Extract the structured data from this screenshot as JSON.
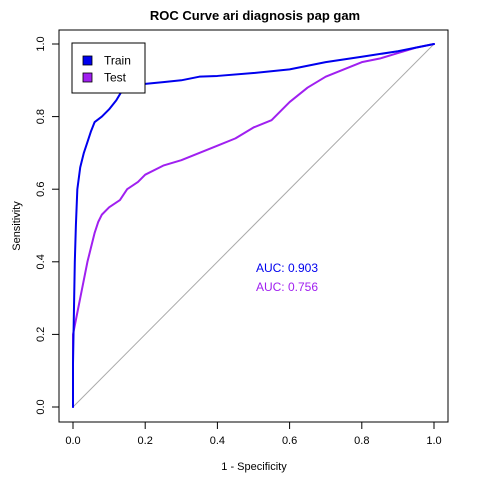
{
  "chart_data": {
    "type": "line",
    "title": "ROC Curve ari diagnosis pap gam",
    "xlabel": "1 - Specificity",
    "ylabel": "Sensitivity",
    "xlim": [
      0,
      1
    ],
    "ylim": [
      0,
      1
    ],
    "xticks": [
      "0.0",
      "0.2",
      "0.4",
      "0.6",
      "0.8",
      "1.0"
    ],
    "yticks": [
      "0.0",
      "0.2",
      "0.4",
      "0.6",
      "0.8",
      "1.0"
    ],
    "grid": false,
    "legend_position": "top-left",
    "diagonal_reference": true,
    "colors": {
      "train": "#0000ee",
      "test": "#a020f0",
      "diagonal": "#aaaaaa",
      "axis": "#000000"
    },
    "series": [
      {
        "name": "Train",
        "auc_label": "AUC: 0.903",
        "points": [
          [
            0.0,
            0.0
          ],
          [
            0.0,
            0.12
          ],
          [
            0.005,
            0.4
          ],
          [
            0.008,
            0.5
          ],
          [
            0.012,
            0.6
          ],
          [
            0.02,
            0.66
          ],
          [
            0.03,
            0.7
          ],
          [
            0.04,
            0.73
          ],
          [
            0.05,
            0.76
          ],
          [
            0.06,
            0.785
          ],
          [
            0.08,
            0.8
          ],
          [
            0.1,
            0.82
          ],
          [
            0.12,
            0.845
          ],
          [
            0.135,
            0.87
          ],
          [
            0.15,
            0.88
          ],
          [
            0.2,
            0.89
          ],
          [
            0.25,
            0.895
          ],
          [
            0.3,
            0.9
          ],
          [
            0.35,
            0.91
          ],
          [
            0.4,
            0.912
          ],
          [
            0.5,
            0.92
          ],
          [
            0.6,
            0.93
          ],
          [
            0.7,
            0.95
          ],
          [
            0.8,
            0.965
          ],
          [
            0.9,
            0.98
          ],
          [
            0.95,
            0.99
          ],
          [
            1.0,
            1.0
          ]
        ]
      },
      {
        "name": "Test",
        "auc_label": "AUC: 0.756",
        "points": [
          [
            0.0,
            0.0
          ],
          [
            0.0,
            0.2
          ],
          [
            0.01,
            0.25
          ],
          [
            0.02,
            0.3
          ],
          [
            0.03,
            0.35
          ],
          [
            0.04,
            0.4
          ],
          [
            0.05,
            0.44
          ],
          [
            0.06,
            0.48
          ],
          [
            0.07,
            0.51
          ],
          [
            0.08,
            0.53
          ],
          [
            0.1,
            0.55
          ],
          [
            0.13,
            0.57
          ],
          [
            0.15,
            0.6
          ],
          [
            0.18,
            0.62
          ],
          [
            0.2,
            0.64
          ],
          [
            0.25,
            0.665
          ],
          [
            0.3,
            0.68
          ],
          [
            0.35,
            0.7
          ],
          [
            0.4,
            0.72
          ],
          [
            0.45,
            0.74
          ],
          [
            0.5,
            0.77
          ],
          [
            0.55,
            0.79
          ],
          [
            0.6,
            0.84
          ],
          [
            0.65,
            0.88
          ],
          [
            0.7,
            0.91
          ],
          [
            0.75,
            0.93
          ],
          [
            0.8,
            0.95
          ],
          [
            0.85,
            0.96
          ],
          [
            0.9,
            0.975
          ],
          [
            0.95,
            0.99
          ],
          [
            1.0,
            1.0
          ]
        ]
      }
    ]
  }
}
